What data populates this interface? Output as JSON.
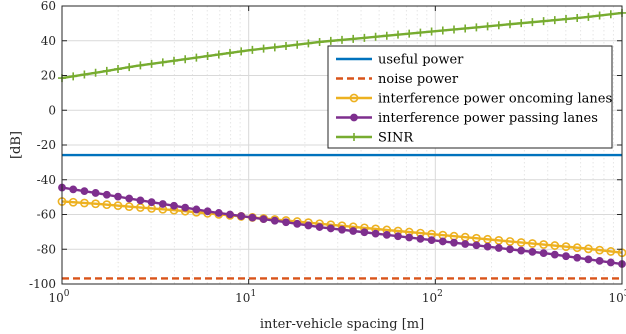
{
  "chart_data": {
    "type": "line",
    "xscale": "log",
    "xlim": [
      1,
      1000
    ],
    "ylim": [
      -100,
      60
    ],
    "grid": true,
    "legend_position": "top-right",
    "xlabel": "inter-vehicle spacing [m]",
    "ylabel": "[dB]",
    "x_ticks": [
      {
        "value": 1,
        "base": "10",
        "exp": "0"
      },
      {
        "value": 10,
        "base": "10",
        "exp": "1"
      },
      {
        "value": 100,
        "base": "10",
        "exp": "2"
      },
      {
        "value": 1000,
        "base": "10",
        "exp": "3"
      }
    ],
    "y_ticks": [
      {
        "value": 60,
        "label": "60"
      },
      {
        "value": 40,
        "label": "40"
      },
      {
        "value": 20,
        "label": "20"
      },
      {
        "value": 0,
        "label": "0"
      },
      {
        "value": -20,
        "label": "-20"
      },
      {
        "value": -40,
        "label": "-40"
      },
      {
        "value": -60,
        "label": "-60"
      },
      {
        "value": -80,
        "label": "-80"
      },
      {
        "value": -100,
        "label": "-100"
      }
    ],
    "series": [
      {
        "name": "useful power",
        "color": "#0072BD",
        "style": "solid",
        "marker": "none",
        "x": [
          1,
          1000
        ],
        "y": [
          -25.8,
          -25.8
        ]
      },
      {
        "name": "noise power",
        "color": "#D95319",
        "style": "dashed",
        "marker": "none",
        "x": [
          1,
          1000
        ],
        "y": [
          -96.8,
          -96.8
        ]
      },
      {
        "name": "interference power oncoming lanes",
        "color": "#EDB120",
        "style": "solid",
        "marker": "circle",
        "x": [
          1,
          1.6,
          2.5,
          4,
          6.3,
          10,
          16,
          25,
          40,
          63,
          100,
          160,
          250,
          400,
          630,
          1000
        ],
        "y": [
          -52.5,
          -54,
          -55.8,
          -57.5,
          -59.5,
          -61.5,
          -63.5,
          -65.5,
          -67.5,
          -69.5,
          -71.5,
          -73.5,
          -75.5,
          -77.5,
          -79.5,
          -82
        ]
      },
      {
        "name": "interference power passing lanes",
        "color": "#7E2F8E",
        "style": "solid",
        "marker": "circle",
        "x": [
          1,
          1.6,
          2.5,
          4,
          6.3,
          10,
          16,
          25,
          40,
          63,
          100,
          160,
          250,
          400,
          630,
          1000
        ],
        "y": [
          -44.5,
          -48,
          -51.5,
          -55,
          -58.5,
          -61.5,
          -64.5,
          -67.5,
          -70,
          -72.5,
          -75,
          -77.5,
          -80,
          -82.5,
          -85.5,
          -88.5
        ]
      },
      {
        "name": "SINR",
        "color": "#77AC30",
        "style": "solid",
        "marker": "plus",
        "x": [
          1,
          1.6,
          2.5,
          4,
          6.3,
          10,
          16,
          25,
          40,
          63,
          100,
          160,
          250,
          400,
          630,
          1000
        ],
        "y": [
          18.5,
          22,
          25.5,
          28.5,
          31.5,
          34.5,
          37,
          39.5,
          41.5,
          43.5,
          45.5,
          47.5,
          49.5,
          51.5,
          53.5,
          56
        ]
      }
    ]
  }
}
